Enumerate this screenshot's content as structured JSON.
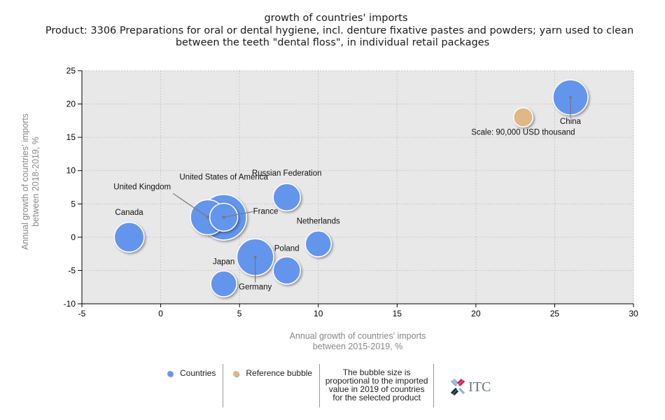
{
  "header": {
    "title": "growth of countries' imports",
    "subtitle_line1": "Product: 3306 Preparations for oral or dental hygiene, incl. denture fixative pastes and powders; yarn used to clean",
    "subtitle_line2": "between the teeth \"dental floss\", in individual retail packages"
  },
  "chart_data": {
    "type": "scatter",
    "subtype": "bubble",
    "title": "growth of countries' imports",
    "xlabel": [
      "Annual growth of countries' imports",
      "between 2015-2019, %"
    ],
    "ylabel": [
      "Annual growth of countries' imports",
      "between 2018-2019, %"
    ],
    "xlim": [
      -5,
      30
    ],
    "ylim": [
      -10,
      25
    ],
    "xticks": [
      -5,
      0,
      5,
      10,
      15,
      20,
      25,
      30
    ],
    "yticks": [
      -10,
      -5,
      0,
      5,
      10,
      15,
      20,
      25
    ],
    "grid": true,
    "colors": {
      "countries": "#6495ed",
      "reference": "#deb887",
      "plot_bg": "#e8e8e8"
    },
    "series": [
      {
        "name": "Countries",
        "points": [
          {
            "label": "United States of America",
            "x": 4,
            "y": 3,
            "size": 1.3
          },
          {
            "label": "United Kingdom",
            "x": 3,
            "y": 3,
            "size": 1.0
          },
          {
            "label": "France",
            "x": 4,
            "y": 3,
            "size": 0.8
          },
          {
            "label": "China",
            "x": 26,
            "y": 21,
            "size": 1.0
          },
          {
            "label": "Germany",
            "x": 6,
            "y": -3,
            "size": 1.05
          },
          {
            "label": "Canada",
            "x": -2,
            "y": 0,
            "size": 0.85
          },
          {
            "label": "Russian Federation",
            "x": 8,
            "y": 6,
            "size": 0.78
          },
          {
            "label": "Netherlands",
            "x": 10,
            "y": -1,
            "size": 0.74
          },
          {
            "label": "Poland",
            "x": 8,
            "y": -5,
            "size": 0.78
          },
          {
            "label": "Japan",
            "x": 4,
            "y": -7,
            "size": 0.74
          }
        ]
      },
      {
        "name": "Reference bubble",
        "points": [
          {
            "label": "Scale: 90,000 USD thousand",
            "x": 23,
            "y": 18,
            "size": 0.55
          }
        ]
      }
    ]
  },
  "legend": {
    "countries": "Countries",
    "reference": "Reference bubble",
    "note": "The bubble size is proportional to the imported value in 2019 of countries for the selected product",
    "logo": "ITC"
  }
}
